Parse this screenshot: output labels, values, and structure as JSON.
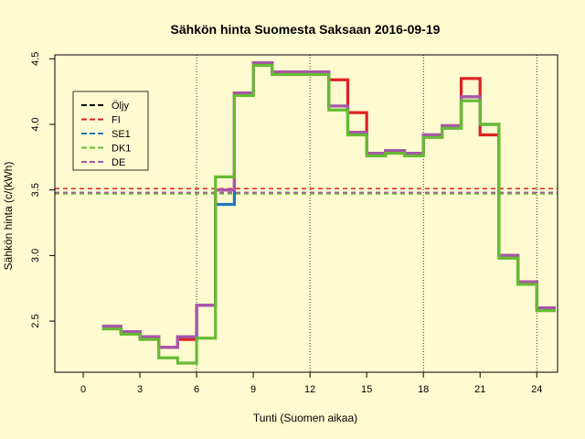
{
  "chart_data": {
    "type": "line",
    "step": true,
    "title": "Sähkön hinta Suomesta Saksaan 2016-09-19",
    "xlabel": "Tunti (Suomen aikaa)",
    "ylabel": "Sähkön hinta (c/(kWh)",
    "xlim": [
      -1.5,
      25.1
    ],
    "ylim": [
      2.11,
      4.53
    ],
    "x_ticks": [
      0,
      3,
      6,
      9,
      12,
      15,
      18,
      21,
      24
    ],
    "y_ticks": [
      2.5,
      3.0,
      3.5,
      4.0,
      4.5
    ],
    "y_tick_labels": [
      "2.5",
      "3.0",
      "3.5",
      "4.0",
      "4.5"
    ],
    "vlines": [
      6,
      12,
      18,
      24
    ],
    "legend_position": "top-left",
    "series": [
      {
        "name": "Öljy",
        "color": "#000000",
        "dashed": true,
        "values": []
      },
      {
        "name": "FI",
        "color": "#dd2222",
        "dashed": true,
        "values": [
          2.46,
          2.42,
          2.38,
          2.3,
          2.36,
          2.62,
          3.5,
          4.24,
          4.47,
          4.4,
          4.4,
          4.4,
          4.34,
          4.09,
          3.78,
          3.8,
          3.78,
          3.92,
          3.99,
          4.35,
          3.92,
          3.0,
          2.8,
          2.6
        ],
        "hline": 3.51
      },
      {
        "name": "SE1",
        "color": "#2277bb",
        "dashed": true,
        "values": [
          2.46,
          2.42,
          2.38,
          2.3,
          2.38,
          2.62,
          3.39,
          4.24,
          4.47,
          4.4,
          4.4,
          4.4,
          4.14,
          3.94,
          3.78,
          3.8,
          3.78,
          3.92,
          3.99,
          4.21,
          4.0,
          3.0,
          2.8,
          2.6
        ],
        "hline": 3.48
      },
      {
        "name": "DK1",
        "color": "#66bb33",
        "dashed": true,
        "values": [
          2.44,
          2.4,
          2.36,
          2.22,
          2.18,
          2.37,
          3.6,
          4.22,
          4.45,
          4.38,
          4.38,
          4.38,
          4.11,
          3.92,
          3.76,
          3.78,
          3.76,
          3.9,
          3.97,
          4.18,
          4.0,
          2.98,
          2.78,
          2.58
        ],
        "hline": 3.47
      },
      {
        "name": "DE",
        "color": "#aa55aa",
        "dashed": true,
        "values": [
          2.46,
          2.42,
          2.38,
          2.3,
          2.38,
          2.62,
          3.5,
          4.24,
          4.47,
          4.4,
          4.4,
          4.4,
          4.14,
          3.94,
          3.78,
          3.8,
          3.78,
          3.92,
          3.99,
          4.21,
          4.0,
          3.0,
          2.8,
          2.6
        ],
        "hline": 3.48
      }
    ],
    "line_start_x": 1
  }
}
